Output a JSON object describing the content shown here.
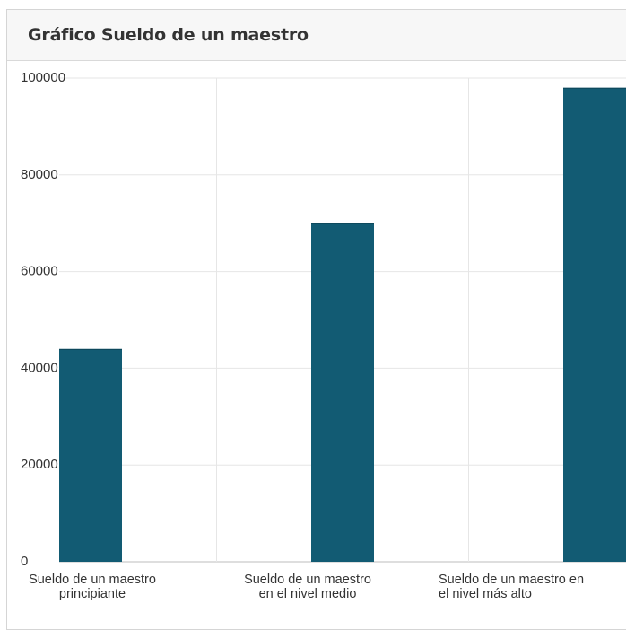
{
  "panel": {
    "title": "Gráfico Sueldo de un maestro"
  },
  "chart_data": {
    "type": "bar",
    "categories": [
      "Sueldo de un maestro principiante",
      "Sueldo de un maestro en el nivel medio",
      "Sueldo de un maestro en el nivel más alto"
    ],
    "category_label_lines": [
      [
        "Sueldo de un maestro",
        "principiante"
      ],
      [
        "Sueldo de un maestro",
        "en el nivel medio"
      ],
      [
        "Sueldo de un maestro en",
        "el nivel más alto"
      ]
    ],
    "values": [
      44000,
      70000,
      98000
    ],
    "ylim": [
      0,
      100000
    ],
    "yticks": [
      "0",
      "20000",
      "40000",
      "60000",
      "80000",
      "100000"
    ],
    "bar_color": "#125b73",
    "grid": true
  }
}
